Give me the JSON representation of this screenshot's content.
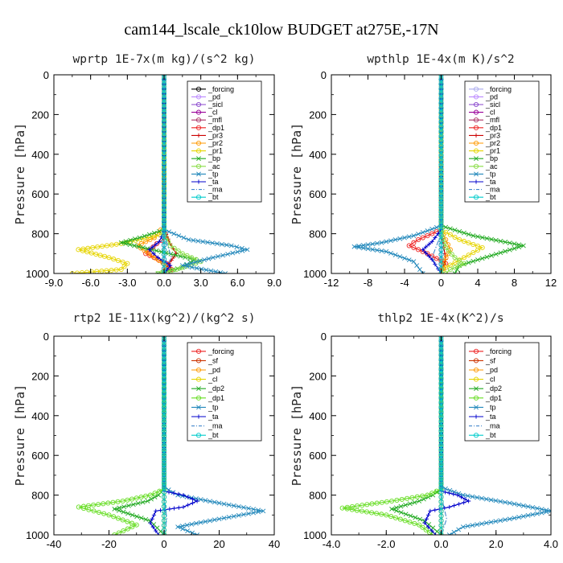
{
  "figure": {
    "title": "cam144_lscale_ck10low  BUDGET at275E,-17N"
  },
  "chart_data": [
    {
      "type": "line",
      "title": "wprtp   1E-7x(m kg)/(s^2 kg)",
      "xlabel": "",
      "ylabel": "Pressure [hPa]",
      "xlim": [
        -9,
        9
      ],
      "ylim": [
        1000,
        0
      ],
      "xticks": [
        "-9.0",
        "-6.0",
        "-3.0",
        "0.0",
        "3.0",
        "6.0",
        "9.0"
      ],
      "yticks": [
        "0",
        "200",
        "400",
        "600",
        "800",
        "1000"
      ],
      "legend_position": "top-right",
      "series": [
        {
          "name": "_forcing",
          "color": "#000000",
          "marker": "o",
          "x": [
            0,
            0,
            0
          ],
          "y": [
            0,
            500,
            1000
          ]
        },
        {
          "name": "_pd",
          "color": "#bb88ff",
          "marker": "o",
          "x": [
            0,
            0,
            0
          ],
          "y": [
            0,
            500,
            1000
          ]
        },
        {
          "name": "_sicl",
          "color": "#8844cc",
          "marker": "o",
          "x": [
            0,
            0,
            0
          ],
          "y": [
            0,
            500,
            1000
          ]
        },
        {
          "name": "_cl",
          "color": "#990099",
          "marker": "o",
          "x": [
            0,
            0,
            0
          ],
          "y": [
            0,
            500,
            1000
          ]
        },
        {
          "name": "_mfl",
          "color": "#aa3366",
          "marker": "o",
          "x": [
            0,
            0,
            0
          ],
          "y": [
            0,
            500,
            1000
          ]
        },
        {
          "name": "_dp1",
          "color": "#ee2222",
          "marker": "o",
          "x": [
            0,
            0,
            0,
            0.2,
            -0.6,
            -1.5,
            0.2,
            0.6,
            0
          ],
          "y": [
            0,
            700,
            780,
            820,
            850,
            900,
            950,
            980,
            1000
          ]
        },
        {
          "name": "_pr3",
          "color": "#cc0000",
          "marker": "+",
          "x": [
            0,
            0,
            0.5,
            1.0,
            0.4,
            0
          ],
          "y": [
            0,
            780,
            850,
            900,
            950,
            1000
          ]
        },
        {
          "name": "_pr2",
          "color": "#ff9900",
          "marker": "o",
          "x": [
            0,
            0,
            -0.8,
            -2.2,
            -1.0,
            0.2,
            0
          ],
          "y": [
            0,
            760,
            820,
            860,
            910,
            960,
            1000
          ]
        },
        {
          "name": "_pr1",
          "color": "#e6d400",
          "marker": "o",
          "x": [
            0,
            0,
            -3.5,
            -7.0,
            -4.5,
            -3.0,
            -3.5,
            -7.5
          ],
          "y": [
            0,
            800,
            850,
            880,
            920,
            950,
            980,
            1000
          ]
        },
        {
          "name": "_bp",
          "color": "#22aa22",
          "marker": "x",
          "x": [
            0,
            0,
            -2.0,
            -3.5,
            -1.0,
            2.5,
            1.5,
            -0.5
          ],
          "y": [
            0,
            780,
            820,
            845,
            880,
            930,
            970,
            1000
          ]
        },
        {
          "name": "_ac",
          "color": "#88dd44",
          "marker": "o",
          "x": [
            0,
            0,
            0.5,
            1.5,
            3.0,
            1.0,
            -0.5
          ],
          "y": [
            0,
            800,
            860,
            900,
            940,
            980,
            1000
          ]
        },
        {
          "name": "_tp",
          "color": "#2288bb",
          "marker": "x",
          "x": [
            0,
            0,
            2.0,
            5.5,
            6.8,
            4.0,
            1.5,
            5.0
          ],
          "y": [
            0,
            780,
            830,
            860,
            880,
            920,
            960,
            1000
          ]
        },
        {
          "name": "_ta",
          "color": "#0000cc",
          "marker": "+",
          "x": [
            0,
            0,
            -0.4,
            -1.2,
            -0.5,
            0.5,
            0
          ],
          "y": [
            0,
            790,
            840,
            880,
            920,
            960,
            1000
          ]
        },
        {
          "name": "_ma",
          "color": "#4488cc",
          "marker": "",
          "x": [
            0,
            0,
            0.3,
            0.6,
            0
          ],
          "y": [
            0,
            800,
            860,
            920,
            1000
          ]
        },
        {
          "name": "_bt",
          "color": "#00cccc",
          "marker": "o",
          "x": [
            0,
            0,
            0
          ],
          "y": [
            0,
            500,
            1000
          ]
        }
      ]
    },
    {
      "type": "line",
      "title": "wpthlp   1E-4x(m K)/s^2",
      "xlabel": "",
      "ylabel": "Pressure [hPa]",
      "xlim": [
        -12,
        12
      ],
      "ylim": [
        1000,
        0
      ],
      "xticks": [
        "-12",
        "-8",
        "-4",
        "0",
        "4",
        "8",
        "12"
      ],
      "yticks": [
        "0",
        "200",
        "400",
        "600",
        "800",
        "1000"
      ],
      "legend_position": "top-right",
      "series": [
        {
          "name": "_forcing",
          "color": "#aaaaee",
          "marker": "o",
          "x": [
            0,
            0,
            0
          ],
          "y": [
            0,
            500,
            1000
          ]
        },
        {
          "name": "_pd",
          "color": "#bb88ff",
          "marker": "o",
          "x": [
            0,
            0,
            0
          ],
          "y": [
            0,
            500,
            1000
          ]
        },
        {
          "name": "_sicl",
          "color": "#8844cc",
          "marker": "o",
          "x": [
            0,
            0,
            0
          ],
          "y": [
            0,
            500,
            1000
          ]
        },
        {
          "name": "_cl",
          "color": "#990099",
          "marker": "o",
          "x": [
            0,
            0,
            0
          ],
          "y": [
            0,
            500,
            1000
          ]
        },
        {
          "name": "_mfl",
          "color": "#aa3366",
          "marker": "o",
          "x": [
            0,
            0,
            0
          ],
          "y": [
            0,
            500,
            1000
          ]
        },
        {
          "name": "_dp1",
          "color": "#ee2222",
          "marker": "o",
          "x": [
            0,
            0,
            -2.5,
            -3.5,
            -1.5,
            0.5,
            0
          ],
          "y": [
            0,
            780,
            830,
            860,
            900,
            950,
            1000
          ]
        },
        {
          "name": "_pr3",
          "color": "#cc0000",
          "marker": "+",
          "x": [
            0,
            0,
            0.3,
            0.5,
            0
          ],
          "y": [
            0,
            800,
            870,
            930,
            1000
          ]
        },
        {
          "name": "_pr2",
          "color": "#ff9900",
          "marker": "o",
          "x": [
            0,
            0,
            0.5,
            1.0,
            0.3,
            0
          ],
          "y": [
            0,
            780,
            830,
            880,
            940,
            1000
          ]
        },
        {
          "name": "_pr1",
          "color": "#e6d400",
          "marker": "o",
          "x": [
            0,
            0,
            2.0,
            4.5,
            2.5,
            0.5,
            0
          ],
          "y": [
            0,
            780,
            830,
            870,
            920,
            970,
            1000
          ]
        },
        {
          "name": "_bp",
          "color": "#22aa22",
          "marker": "x",
          "x": [
            0,
            0,
            3.5,
            9.0,
            5.5,
            2.0,
            1.5
          ],
          "y": [
            0,
            760,
            810,
            860,
            910,
            960,
            1000
          ]
        },
        {
          "name": "_ac",
          "color": "#88dd44",
          "marker": "o",
          "x": [
            0,
            0,
            0.5,
            1.5,
            2.5,
            1.0,
            0.5
          ],
          "y": [
            0,
            800,
            870,
            920,
            950,
            980,
            1000
          ]
        },
        {
          "name": "_tp",
          "color": "#2288bb",
          "marker": "x",
          "x": [
            0,
            0,
            -3.0,
            -6.5,
            -9.5,
            -6.0,
            -3.0,
            -2.0
          ],
          "y": [
            0,
            760,
            810,
            845,
            865,
            890,
            940,
            1000
          ]
        },
        {
          "name": "_ta",
          "color": "#0000cc",
          "marker": "+",
          "x": [
            0,
            0,
            -1.0,
            -2.0,
            -1.0,
            0
          ],
          "y": [
            0,
            780,
            840,
            880,
            930,
            1000
          ]
        },
        {
          "name": "_ma",
          "color": "#4488cc",
          "marker": "",
          "x": [
            0,
            0,
            -0.5,
            -1.0,
            0
          ],
          "y": [
            0,
            800,
            860,
            920,
            1000
          ]
        },
        {
          "name": "_bt",
          "color": "#00cccc",
          "marker": "o",
          "x": [
            0,
            0,
            0
          ],
          "y": [
            0,
            500,
            1000
          ]
        }
      ]
    },
    {
      "type": "line",
      "title": "rtp2   1E-11x(kg^2)/(kg^2 s)",
      "xlabel": "",
      "ylabel": "Pressure [hPa]",
      "xlim": [
        -40,
        40
      ],
      "ylim": [
        1000,
        0
      ],
      "xticks": [
        "-40",
        "-20",
        "0",
        "20",
        "40"
      ],
      "yticks": [
        "0",
        "200",
        "400",
        "600",
        "800",
        "1000"
      ],
      "legend_position": "top-right",
      "series": [
        {
          "name": "_forcing",
          "color": "#ee2222",
          "marker": "o",
          "x": [
            0,
            0,
            0
          ],
          "y": [
            0,
            500,
            1000
          ]
        },
        {
          "name": "_sf",
          "color": "#cc3300",
          "marker": "o",
          "x": [
            0,
            0,
            0
          ],
          "y": [
            0,
            500,
            1000
          ]
        },
        {
          "name": "_pd",
          "color": "#ff9900",
          "marker": "o",
          "x": [
            0,
            0,
            0
          ],
          "y": [
            0,
            500,
            1000
          ]
        },
        {
          "name": "_cl",
          "color": "#e6d400",
          "marker": "o",
          "x": [
            0,
            0,
            0
          ],
          "y": [
            0,
            500,
            1000
          ]
        },
        {
          "name": "_dp2",
          "color": "#22aa22",
          "marker": "x",
          "x": [
            0,
            0,
            -2.0,
            -6.0,
            -18.0,
            -5.0,
            0
          ],
          "y": [
            0,
            770,
            800,
            830,
            870,
            930,
            1000
          ]
        },
        {
          "name": "_dp1",
          "color": "#66dd22",
          "marker": "o",
          "x": [
            0,
            0,
            -5.0,
            -15.0,
            -31.0,
            -20.0,
            -10.0,
            -18.0
          ],
          "y": [
            0,
            770,
            800,
            830,
            860,
            900,
            950,
            1000
          ]
        },
        {
          "name": "_tp",
          "color": "#2288bb",
          "marker": "x",
          "x": [
            0,
            0,
            5.0,
            20.0,
            36.0,
            20.0,
            5.0,
            12.0
          ],
          "y": [
            0,
            760,
            800,
            840,
            880,
            920,
            960,
            1000
          ]
        },
        {
          "name": "_ta",
          "color": "#0000cc",
          "marker": "+",
          "x": [
            0,
            0,
            7.0,
            12.0,
            7.0,
            -3.0,
            -5.0,
            -2.0
          ],
          "y": [
            0,
            780,
            800,
            830,
            860,
            880,
            940,
            1000
          ]
        },
        {
          "name": "_ma",
          "color": "#4488cc",
          "marker": "",
          "x": [
            0,
            0,
            0.5,
            1.0,
            0
          ],
          "y": [
            0,
            800,
            860,
            920,
            1000
          ]
        },
        {
          "name": "_bt",
          "color": "#00cccc",
          "marker": "o",
          "x": [
            0,
            0,
            0
          ],
          "y": [
            0,
            500,
            1000
          ]
        }
      ]
    },
    {
      "type": "line",
      "title": "thlp2   1E-4x(K^2)/s",
      "xlabel": "",
      "ylabel": "Pressure [hPa]",
      "xlim": [
        -4,
        4
      ],
      "ylim": [
        1000,
        0
      ],
      "xticks": [
        "-4.0",
        "-2.0",
        "0.0",
        "2.0",
        "4.0"
      ],
      "yticks": [
        "0",
        "200",
        "400",
        "600",
        "800",
        "1000"
      ],
      "legend_position": "top-right",
      "series": [
        {
          "name": "_forcing",
          "color": "#ee2222",
          "marker": "o",
          "x": [
            0,
            0,
            0
          ],
          "y": [
            0,
            500,
            1000
          ]
        },
        {
          "name": "_sf",
          "color": "#cc3300",
          "marker": "o",
          "x": [
            0,
            0,
            0
          ],
          "y": [
            0,
            500,
            1000
          ]
        },
        {
          "name": "_pd",
          "color": "#ff9900",
          "marker": "o",
          "x": [
            0,
            0,
            0
          ],
          "y": [
            0,
            500,
            1000
          ]
        },
        {
          "name": "_cl",
          "color": "#e6d400",
          "marker": "o",
          "x": [
            0,
            0,
            0
          ],
          "y": [
            0,
            500,
            1000
          ]
        },
        {
          "name": "_dp2",
          "color": "#22aa22",
          "marker": "x",
          "x": [
            0,
            0,
            -0.3,
            -0.8,
            -1.8,
            -0.6,
            0
          ],
          "y": [
            0,
            770,
            800,
            830,
            870,
            930,
            1000
          ]
        },
        {
          "name": "_dp1",
          "color": "#66dd22",
          "marker": "o",
          "x": [
            0,
            0,
            -0.5,
            -1.8,
            -3.6,
            -2.0,
            -0.8,
            -0.3
          ],
          "y": [
            0,
            770,
            800,
            830,
            865,
            900,
            950,
            1000
          ]
        },
        {
          "name": "_tp",
          "color": "#2288bb",
          "marker": "x",
          "x": [
            0,
            0,
            0.8,
            2.5,
            4.0,
            2.5,
            0.8,
            0.3
          ],
          "y": [
            0,
            760,
            800,
            840,
            880,
            920,
            960,
            1000
          ]
        },
        {
          "name": "_ta",
          "color": "#0000cc",
          "marker": "+",
          "x": [
            0,
            0,
            0.6,
            1.0,
            0.3,
            -0.4,
            -0.6,
            -0.2
          ],
          "y": [
            0,
            780,
            800,
            830,
            860,
            880,
            940,
            1000
          ]
        },
        {
          "name": "_ma",
          "color": "#4488cc",
          "marker": "",
          "x": [
            0,
            0,
            0.1,
            0.2,
            0
          ],
          "y": [
            0,
            800,
            860,
            920,
            1000
          ]
        },
        {
          "name": "_bt",
          "color": "#00cccc",
          "marker": "o",
          "x": [
            0,
            0,
            0
          ],
          "y": [
            0,
            500,
            1000
          ]
        }
      ]
    }
  ]
}
